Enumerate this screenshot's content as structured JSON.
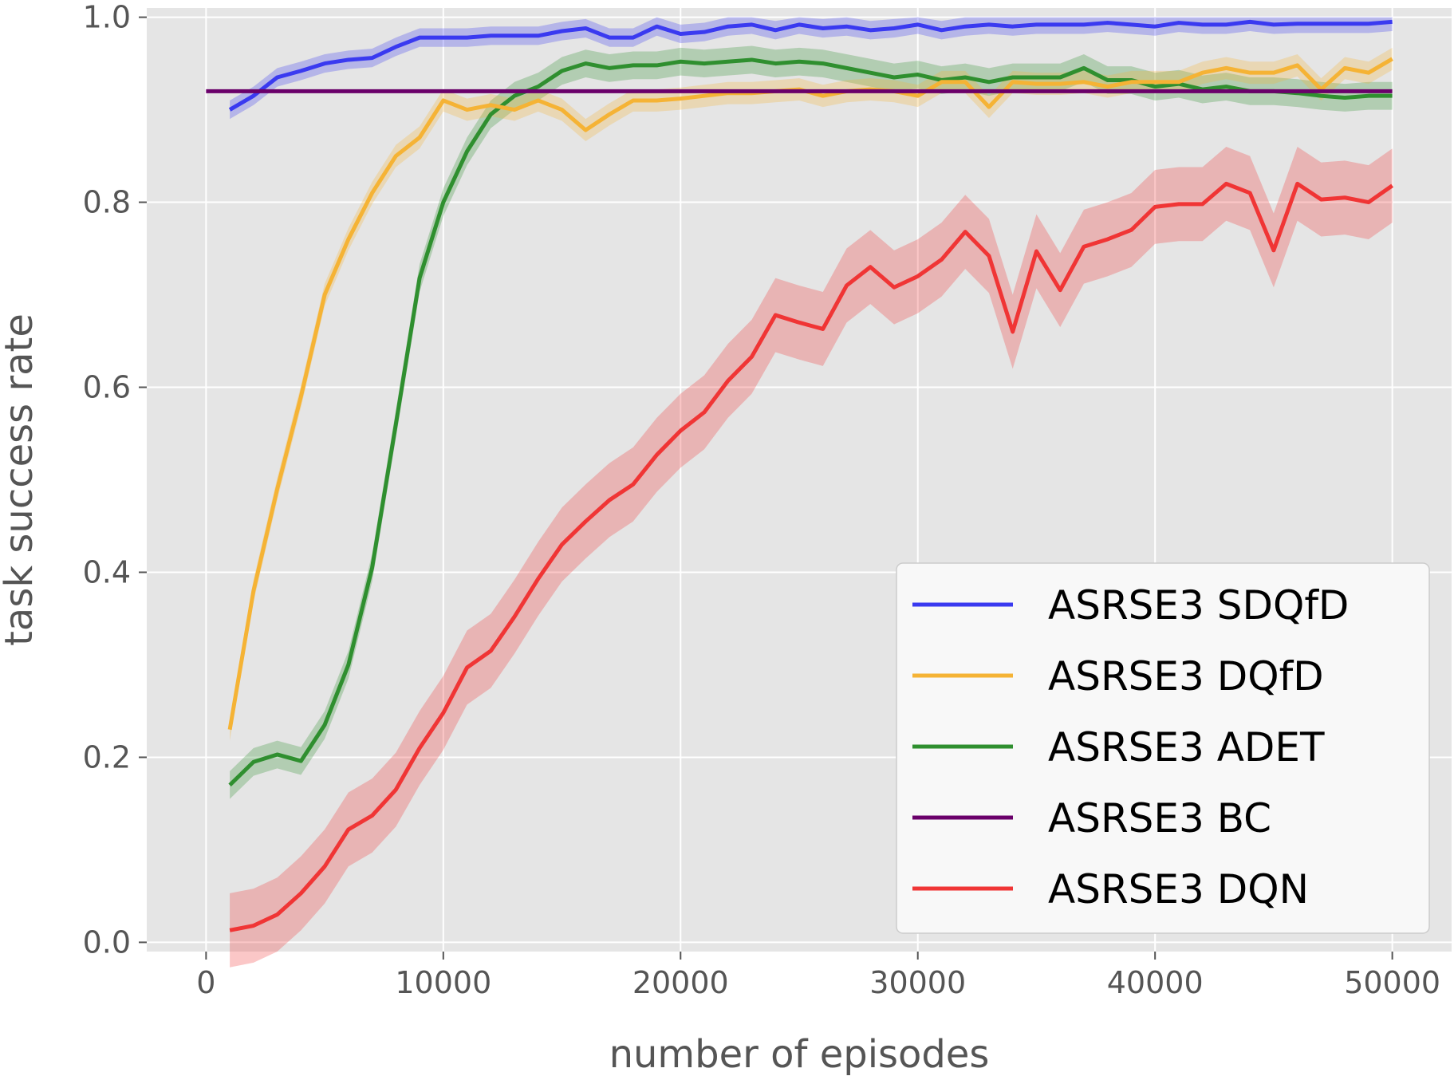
{
  "chart_data": {
    "type": "line",
    "title": "",
    "xlabel": "number of episodes",
    "ylabel": "task success rate",
    "xlim": [
      -2500,
      52500
    ],
    "ylim": [
      -0.01,
      1.01
    ],
    "xticks": [
      0,
      10000,
      20000,
      30000,
      40000,
      50000
    ],
    "xtick_labels": [
      "0",
      "10000",
      "20000",
      "30000",
      "40000",
      "50000"
    ],
    "yticks": [
      0.0,
      0.2,
      0.4,
      0.6,
      0.8,
      1.0
    ],
    "ytick_labels": [
      "0.0",
      "0.2",
      "0.4",
      "0.6",
      "0.8",
      "1.0"
    ],
    "grid": true,
    "legend_position": "lower-right",
    "x": [
      1000,
      2000,
      3000,
      4000,
      5000,
      6000,
      7000,
      8000,
      9000,
      10000,
      11000,
      12000,
      13000,
      14000,
      15000,
      16000,
      17000,
      18000,
      19000,
      20000,
      21000,
      22000,
      23000,
      24000,
      25000,
      26000,
      27000,
      28000,
      29000,
      30000,
      31000,
      32000,
      33000,
      34000,
      35000,
      36000,
      37000,
      38000,
      39000,
      40000,
      41000,
      42000,
      43000,
      44000,
      45000,
      46000,
      47000,
      48000,
      49000,
      50000
    ],
    "series": [
      {
        "name": "ASRSE3 SDQfD",
        "color": "#3a3af0",
        "values": [
          0.9,
          0.915,
          0.935,
          0.942,
          0.95,
          0.954,
          0.956,
          0.968,
          0.978,
          0.978,
          0.978,
          0.98,
          0.98,
          0.98,
          0.985,
          0.988,
          0.978,
          0.978,
          0.99,
          0.982,
          0.984,
          0.99,
          0.992,
          0.986,
          0.992,
          0.988,
          0.99,
          0.986,
          0.988,
          0.992,
          0.986,
          0.99,
          0.992,
          0.99,
          0.992,
          0.992,
          0.992,
          0.994,
          0.992,
          0.99,
          0.994,
          0.992,
          0.992,
          0.995,
          0.992,
          0.993,
          0.993,
          0.993,
          0.993,
          0.995
        ],
        "band": 0.01
      },
      {
        "name": "ASRSE3 DQfD",
        "color": "#f5b335",
        "values": [
          0.23,
          0.38,
          0.49,
          0.59,
          0.7,
          0.76,
          0.81,
          0.85,
          0.87,
          0.91,
          0.9,
          0.905,
          0.9,
          0.91,
          0.9,
          0.878,
          0.895,
          0.91,
          0.91,
          0.912,
          0.915,
          0.918,
          0.918,
          0.92,
          0.922,
          0.915,
          0.92,
          0.922,
          0.92,
          0.915,
          0.93,
          0.93,
          0.903,
          0.93,
          0.928,
          0.928,
          0.93,
          0.925,
          0.93,
          0.93,
          0.93,
          0.94,
          0.945,
          0.94,
          0.94,
          0.948,
          0.922,
          0.945,
          0.94,
          0.955
        ],
        "band": 0.012
      },
      {
        "name": "ASRSE3 ADET",
        "color": "#2f8f2f",
        "values": [
          0.17,
          0.195,
          0.203,
          0.196,
          0.235,
          0.3,
          0.405,
          0.56,
          0.718,
          0.8,
          0.855,
          0.895,
          0.915,
          0.925,
          0.942,
          0.95,
          0.945,
          0.948,
          0.948,
          0.952,
          0.95,
          0.952,
          0.954,
          0.95,
          0.952,
          0.95,
          0.945,
          0.94,
          0.935,
          0.938,
          0.932,
          0.935,
          0.93,
          0.935,
          0.935,
          0.935,
          0.945,
          0.932,
          0.932,
          0.925,
          0.928,
          0.922,
          0.925,
          0.92,
          0.92,
          0.918,
          0.915,
          0.913,
          0.915,
          0.915
        ],
        "band": 0.015
      },
      {
        "name": "ASRSE3 BC",
        "color": "#6a006a",
        "values": [
          0.92,
          0.92,
          0.92,
          0.92,
          0.92,
          0.92,
          0.92,
          0.92,
          0.92,
          0.92,
          0.92,
          0.92,
          0.92,
          0.92,
          0.92,
          0.92,
          0.92,
          0.92,
          0.92,
          0.92,
          0.92,
          0.92,
          0.92,
          0.92,
          0.92,
          0.92,
          0.92,
          0.92,
          0.92,
          0.92,
          0.92,
          0.92,
          0.92,
          0.92,
          0.92,
          0.92,
          0.92,
          0.92,
          0.92,
          0.92,
          0.92,
          0.92,
          0.92,
          0.92,
          0.92,
          0.92,
          0.92,
          0.92,
          0.92,
          0.92
        ],
        "band": 0
      },
      {
        "name": "ASRSE3 DQN",
        "color": "#f03535",
        "values": [
          0.013,
          0.018,
          0.03,
          0.053,
          0.082,
          0.122,
          0.137,
          0.165,
          0.21,
          0.248,
          0.297,
          0.315,
          0.352,
          0.393,
          0.43,
          0.455,
          0.478,
          0.495,
          0.527,
          0.553,
          0.573,
          0.607,
          0.633,
          0.678,
          0.67,
          0.663,
          0.71,
          0.73,
          0.708,
          0.72,
          0.738,
          0.768,
          0.742,
          0.66,
          0.747,
          0.705,
          0.752,
          0.76,
          0.77,
          0.795,
          0.798,
          0.798,
          0.82,
          0.81,
          0.748,
          0.82,
          0.803,
          0.805,
          0.8,
          0.818
        ],
        "band": 0.04
      }
    ]
  }
}
